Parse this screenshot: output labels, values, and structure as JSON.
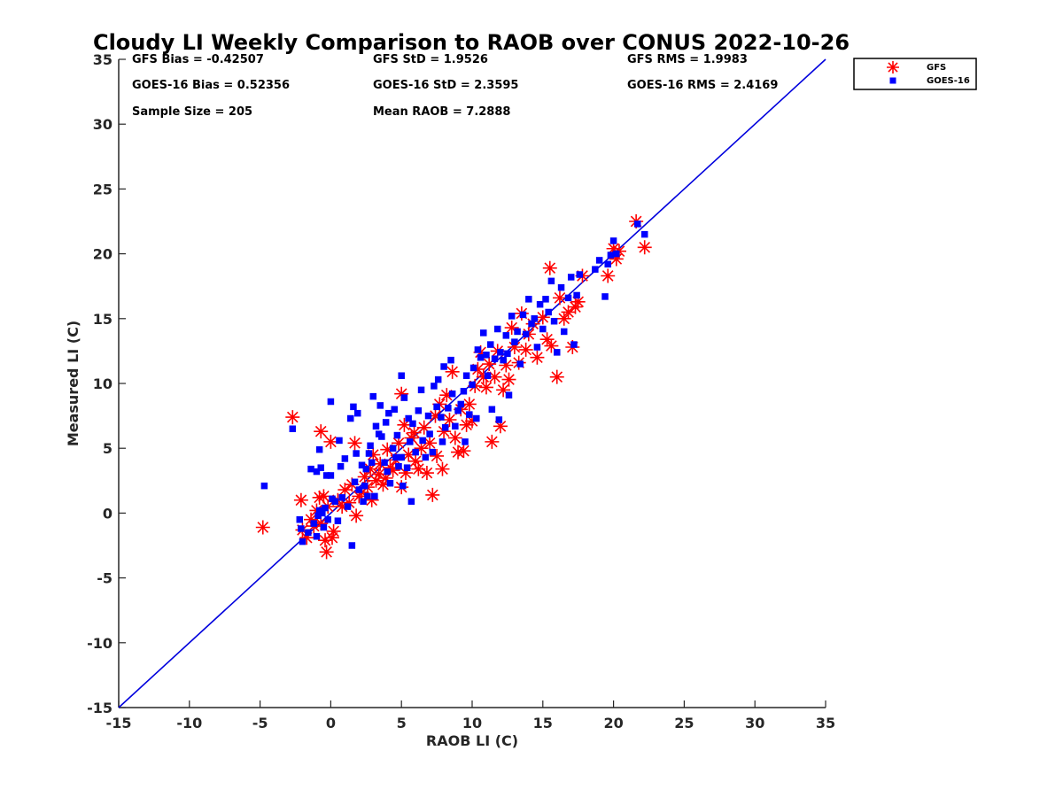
{
  "chart_data": {
    "type": "scatter",
    "title": "Cloudy LI Weekly Comparison to RAOB over CONUS 2022-10-26",
    "xlabel": "RAOB LI (C)",
    "ylabel": "Measured LI (C)",
    "xlim": [
      -15,
      35
    ],
    "ylim": [
      -15,
      35
    ],
    "xticks": [
      "-15",
      "-10",
      "-5",
      "0",
      "5",
      "10",
      "15",
      "20",
      "25",
      "30",
      "35"
    ],
    "yticks": [
      "-15",
      "-10",
      "-5",
      "0",
      "5",
      "10",
      "15",
      "20",
      "25",
      "30",
      "35"
    ],
    "grid": false,
    "legend_position": "top-right (outside plot)",
    "reference_line": {
      "label": "1:1",
      "from": [
        -15,
        -15
      ],
      "to": [
        35,
        35
      ],
      "color": "#0000dd"
    },
    "stats": [
      [
        "GFS Bias = -0.42507",
        "GFS StD = 1.9526",
        "GFS RMS = 1.9983"
      ],
      [
        "GOES-16 Bias = 0.52356",
        "GOES-16 StD = 2.3595",
        "GOES-16 RMS = 2.4169"
      ],
      [
        "Sample Size = 205",
        "Mean RAOB = 7.2888",
        ""
      ]
    ],
    "series": [
      {
        "name": "GFS",
        "marker": "asterisk",
        "color": "#ff0000",
        "points": [
          [
            -4.8,
            -1.1
          ],
          [
            -2.7,
            7.4
          ],
          [
            -2.1,
            1.0
          ],
          [
            -2.0,
            -1.3
          ],
          [
            -1.7,
            -1.9
          ],
          [
            -1.4,
            -0.5
          ],
          [
            -1.2,
            -1.0
          ],
          [
            -1.0,
            0.2
          ],
          [
            -0.8,
            1.2
          ],
          [
            -0.7,
            -0.8
          ],
          [
            -0.7,
            6.3
          ],
          [
            -0.5,
            1.3
          ],
          [
            -0.4,
            -2.1
          ],
          [
            -0.3,
            -3.0
          ],
          [
            -0.2,
            0.5
          ],
          [
            0.0,
            5.5
          ],
          [
            0.1,
            -1.9
          ],
          [
            0.2,
            -1.4
          ],
          [
            0.5,
            1.0
          ],
          [
            0.8,
            0.5
          ],
          [
            1.0,
            1.8
          ],
          [
            1.3,
            0.8
          ],
          [
            1.5,
            2.2
          ],
          [
            1.7,
            5.4
          ],
          [
            1.8,
            -0.2
          ],
          [
            2.0,
            1.3
          ],
          [
            2.2,
            1.6
          ],
          [
            2.4,
            2.8
          ],
          [
            2.6,
            2.0
          ],
          [
            2.8,
            3.4
          ],
          [
            2.9,
            1.0
          ],
          [
            3.0,
            4.5
          ],
          [
            3.2,
            2.5
          ],
          [
            3.4,
            3.0
          ],
          [
            3.5,
            3.8
          ],
          [
            3.7,
            2.2
          ],
          [
            3.9,
            2.7
          ],
          [
            4.0,
            4.9
          ],
          [
            4.2,
            3.5
          ],
          [
            4.4,
            3.3
          ],
          [
            4.6,
            4.1
          ],
          [
            4.8,
            5.4
          ],
          [
            5.0,
            9.2
          ],
          [
            5.0,
            2.0
          ],
          [
            5.2,
            6.8
          ],
          [
            5.3,
            3.1
          ],
          [
            5.5,
            4.5
          ],
          [
            5.7,
            5.8
          ],
          [
            5.9,
            6.2
          ],
          [
            6.0,
            4.0
          ],
          [
            6.2,
            3.4
          ],
          [
            6.4,
            5.0
          ],
          [
            6.6,
            6.6
          ],
          [
            6.8,
            3.1
          ],
          [
            7.0,
            5.4
          ],
          [
            7.2,
            1.4
          ],
          [
            7.4,
            7.5
          ],
          [
            7.5,
            4.4
          ],
          [
            7.7,
            8.4
          ],
          [
            7.9,
            3.4
          ],
          [
            8.0,
            6.3
          ],
          [
            8.2,
            9.1
          ],
          [
            8.4,
            7.2
          ],
          [
            8.6,
            10.9
          ],
          [
            8.8,
            5.8
          ],
          [
            9.0,
            4.7
          ],
          [
            9.2,
            8.0
          ],
          [
            9.4,
            4.8
          ],
          [
            9.6,
            6.8
          ],
          [
            9.8,
            8.4
          ],
          [
            10.0,
            7.1
          ],
          [
            10.2,
            9.8
          ],
          [
            10.4,
            11.1
          ],
          [
            10.6,
            12.4
          ],
          [
            10.8,
            10.5
          ],
          [
            11.0,
            9.7
          ],
          [
            11.2,
            11.5
          ],
          [
            11.4,
            5.5
          ],
          [
            11.6,
            10.5
          ],
          [
            11.8,
            12.5
          ],
          [
            12.0,
            6.7
          ],
          [
            12.2,
            9.5
          ],
          [
            12.4,
            11.4
          ],
          [
            12.6,
            10.3
          ],
          [
            12.8,
            14.3
          ],
          [
            13.0,
            12.8
          ],
          [
            13.3,
            11.6
          ],
          [
            13.5,
            15.4
          ],
          [
            13.8,
            12.6
          ],
          [
            14.0,
            13.8
          ],
          [
            14.3,
            14.6
          ],
          [
            14.6,
            12.0
          ],
          [
            15.0,
            15.1
          ],
          [
            15.3,
            13.4
          ],
          [
            15.5,
            18.9
          ],
          [
            15.6,
            12.9
          ],
          [
            16.0,
            10.5
          ],
          [
            16.2,
            16.6
          ],
          [
            16.5,
            15.0
          ],
          [
            16.8,
            15.5
          ],
          [
            17.1,
            12.8
          ],
          [
            17.3,
            15.9
          ],
          [
            17.5,
            16.3
          ],
          [
            17.8,
            18.3
          ],
          [
            19.6,
            18.3
          ],
          [
            20.0,
            20.4
          ],
          [
            20.2,
            19.6
          ],
          [
            20.4,
            20.2
          ],
          [
            21.6,
            22.5
          ],
          [
            22.2,
            20.5
          ]
        ]
      },
      {
        "name": "GOES-16",
        "marker": "square",
        "color": "#0000ff",
        "points": [
          [
            -4.7,
            2.1
          ],
          [
            -2.7,
            6.5
          ],
          [
            -2.2,
            -0.5
          ],
          [
            -2.1,
            -1.2
          ],
          [
            -2.0,
            -2.2
          ],
          [
            -1.6,
            -1.5
          ],
          [
            -1.4,
            3.4
          ],
          [
            -1.2,
            -0.8
          ],
          [
            -1.0,
            3.2
          ],
          [
            -1.0,
            -1.8
          ],
          [
            -0.9,
            -0.2
          ],
          [
            -0.8,
            0.2
          ],
          [
            -0.8,
            4.9
          ],
          [
            -0.7,
            3.5
          ],
          [
            -0.6,
            0.0
          ],
          [
            -0.5,
            -1.1
          ],
          [
            -0.4,
            0.4
          ],
          [
            -0.3,
            2.9
          ],
          [
            -0.2,
            -0.5
          ],
          [
            0.0,
            8.6
          ],
          [
            0.0,
            2.9
          ],
          [
            0.1,
            1.1
          ],
          [
            0.3,
            0.9
          ],
          [
            0.5,
            -0.6
          ],
          [
            0.6,
            5.6
          ],
          [
            0.7,
            3.6
          ],
          [
            0.8,
            1.2
          ],
          [
            1.0,
            4.2
          ],
          [
            1.2,
            0.5
          ],
          [
            1.4,
            7.3
          ],
          [
            1.5,
            -2.5
          ],
          [
            1.6,
            8.2
          ],
          [
            1.7,
            2.4
          ],
          [
            1.8,
            4.6
          ],
          [
            1.9,
            7.7
          ],
          [
            2.0,
            1.8
          ],
          [
            2.2,
            3.7
          ],
          [
            2.3,
            0.9
          ],
          [
            2.4,
            2.1
          ],
          [
            2.5,
            3.4
          ],
          [
            2.6,
            1.3
          ],
          [
            2.7,
            4.6
          ],
          [
            2.8,
            5.2
          ],
          [
            2.9,
            3.9
          ],
          [
            3.0,
            9.0
          ],
          [
            3.1,
            1.3
          ],
          [
            3.2,
            6.7
          ],
          [
            3.4,
            6.1
          ],
          [
            3.5,
            8.3
          ],
          [
            3.6,
            5.9
          ],
          [
            3.8,
            3.9
          ],
          [
            3.9,
            7.0
          ],
          [
            4.0,
            3.2
          ],
          [
            4.1,
            7.7
          ],
          [
            4.2,
            2.3
          ],
          [
            4.4,
            5.0
          ],
          [
            4.5,
            8.0
          ],
          [
            4.6,
            4.3
          ],
          [
            4.7,
            6.0
          ],
          [
            4.8,
            3.6
          ],
          [
            5.0,
            10.6
          ],
          [
            5.0,
            4.3
          ],
          [
            5.1,
            2.1
          ],
          [
            5.2,
            8.9
          ],
          [
            5.4,
            3.5
          ],
          [
            5.5,
            7.3
          ],
          [
            5.6,
            5.5
          ],
          [
            5.7,
            0.9
          ],
          [
            5.8,
            6.9
          ],
          [
            6.0,
            4.7
          ],
          [
            6.2,
            7.9
          ],
          [
            6.4,
            9.5
          ],
          [
            6.5,
            5.6
          ],
          [
            6.7,
            4.3
          ],
          [
            6.9,
            7.5
          ],
          [
            7.0,
            6.1
          ],
          [
            7.2,
            4.7
          ],
          [
            7.3,
            9.8
          ],
          [
            7.5,
            8.2
          ],
          [
            7.6,
            10.3
          ],
          [
            7.8,
            7.4
          ],
          [
            7.9,
            5.5
          ],
          [
            8.0,
            11.3
          ],
          [
            8.1,
            6.6
          ],
          [
            8.3,
            8.1
          ],
          [
            8.5,
            11.8
          ],
          [
            8.6,
            9.2
          ],
          [
            8.8,
            6.7
          ],
          [
            9.0,
            7.9
          ],
          [
            9.2,
            8.4
          ],
          [
            9.4,
            9.4
          ],
          [
            9.5,
            5.5
          ],
          [
            9.6,
            10.6
          ],
          [
            9.8,
            7.6
          ],
          [
            10.0,
            9.9
          ],
          [
            10.1,
            11.2
          ],
          [
            10.3,
            7.3
          ],
          [
            10.4,
            12.6
          ],
          [
            10.6,
            12.0
          ],
          [
            10.8,
            13.9
          ],
          [
            11.0,
            12.2
          ],
          [
            11.1,
            10.6
          ],
          [
            11.3,
            13.0
          ],
          [
            11.4,
            8.0
          ],
          [
            11.6,
            11.9
          ],
          [
            11.8,
            14.2
          ],
          [
            11.9,
            7.2
          ],
          [
            12.0,
            12.4
          ],
          [
            12.2,
            11.8
          ],
          [
            12.4,
            13.7
          ],
          [
            12.5,
            12.3
          ],
          [
            12.6,
            9.1
          ],
          [
            12.8,
            15.2
          ],
          [
            13.0,
            13.2
          ],
          [
            13.2,
            14.0
          ],
          [
            13.4,
            11.5
          ],
          [
            13.6,
            15.3
          ],
          [
            13.8,
            13.8
          ],
          [
            14.0,
            16.5
          ],
          [
            14.2,
            14.6
          ],
          [
            14.4,
            15.0
          ],
          [
            14.6,
            12.8
          ],
          [
            14.8,
            16.1
          ],
          [
            15.0,
            14.2
          ],
          [
            15.2,
            16.5
          ],
          [
            15.4,
            15.5
          ],
          [
            15.6,
            17.9
          ],
          [
            15.8,
            14.8
          ],
          [
            16.0,
            12.4
          ],
          [
            16.3,
            17.4
          ],
          [
            16.5,
            14.0
          ],
          [
            16.8,
            16.6
          ],
          [
            17.0,
            18.2
          ],
          [
            17.2,
            13.0
          ],
          [
            17.4,
            16.8
          ],
          [
            17.6,
            18.4
          ],
          [
            18.7,
            18.8
          ],
          [
            19.0,
            19.5
          ],
          [
            19.4,
            16.7
          ],
          [
            19.6,
            19.2
          ],
          [
            19.8,
            19.9
          ],
          [
            20.0,
            21.0
          ],
          [
            20.2,
            20.0
          ],
          [
            21.7,
            22.3
          ],
          [
            22.2,
            21.5
          ]
        ]
      }
    ]
  }
}
